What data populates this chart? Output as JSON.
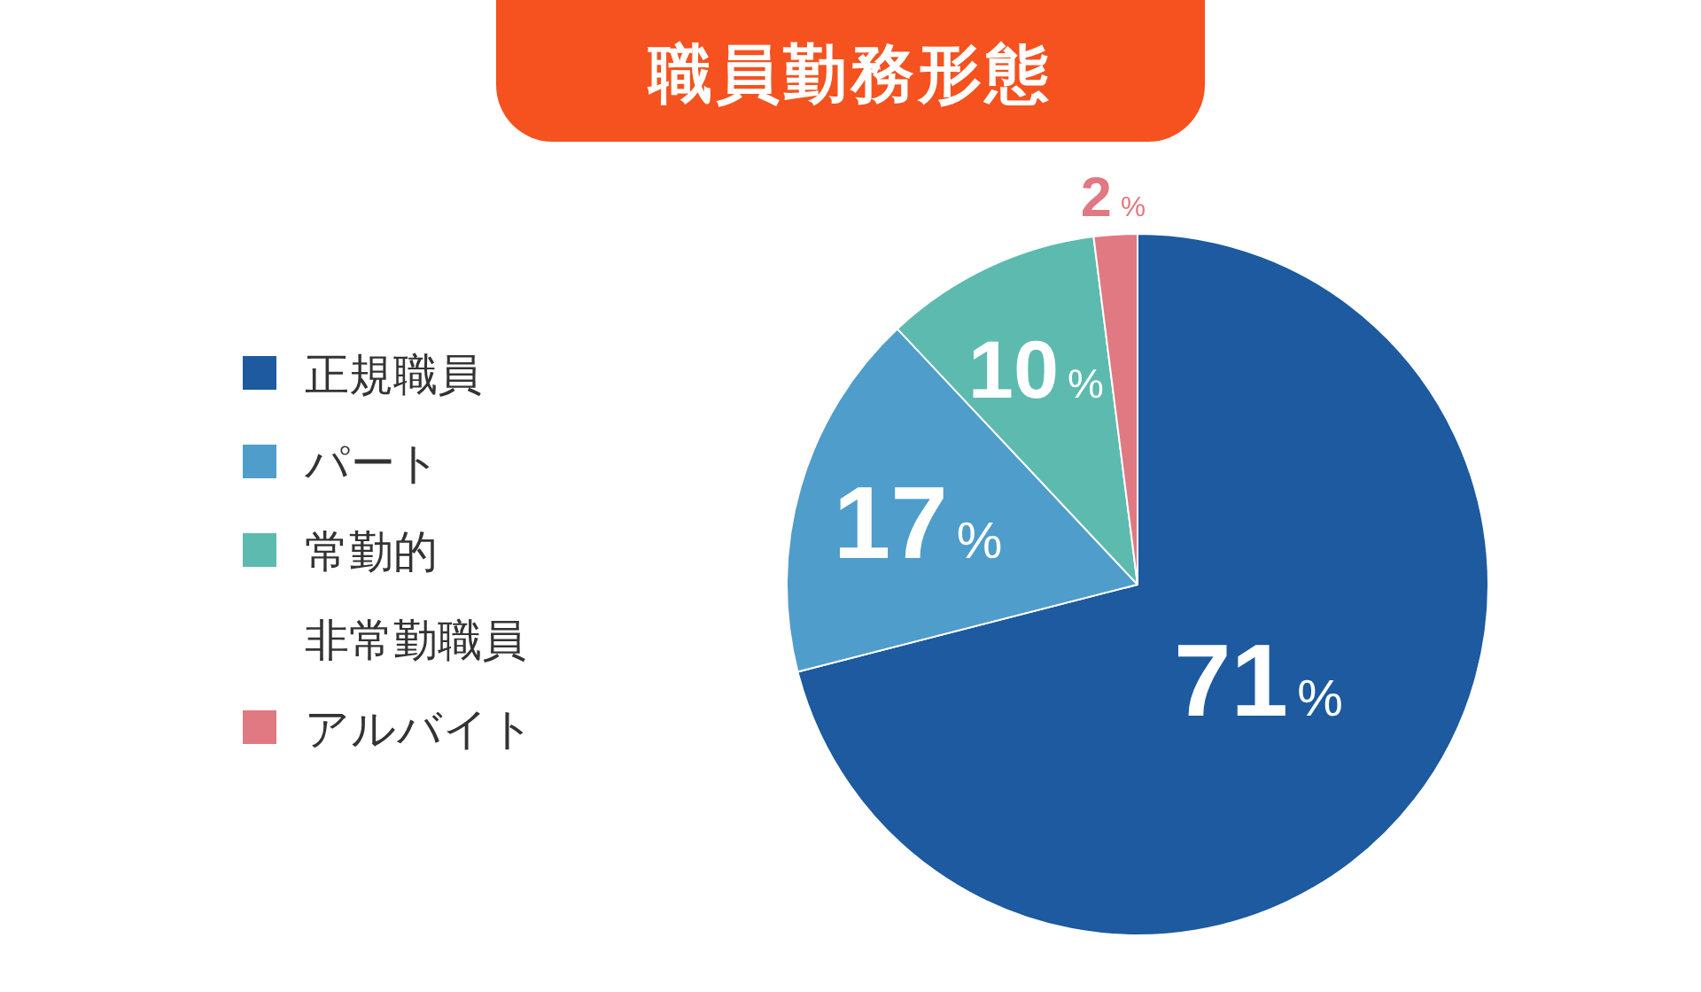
{
  "chart_data": {
    "type": "pie",
    "title": "職員勤務形態",
    "categories": [
      "正規職員",
      "パート",
      "常勤的非常勤職員",
      "アルバイト"
    ],
    "values": [
      71,
      17,
      10,
      2
    ],
    "colors": [
      "#1d5a9f",
      "#4f9dcb",
      "#5dbaae",
      "#e07982"
    ],
    "value_labels": [
      "71%",
      "17%",
      "10%",
      "2%"
    ],
    "legend": "left"
  }
}
